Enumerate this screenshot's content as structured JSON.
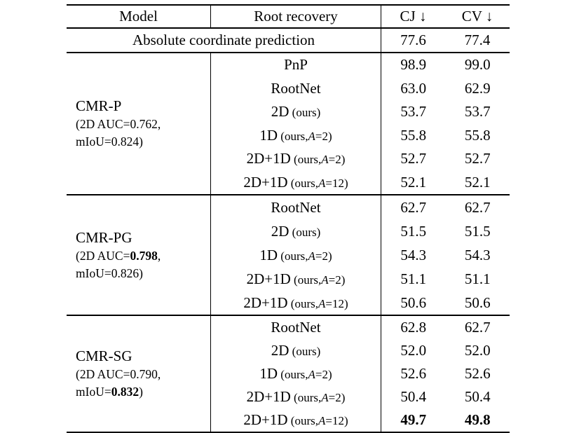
{
  "header": {
    "model": "Model",
    "recovery": "Root recovery",
    "cj": "CJ ↓",
    "cv": "CV ↓"
  },
  "absolute": {
    "label": "Absolute coordinate prediction",
    "cj": "77.6",
    "cv": "77.4"
  },
  "sections": [
    {
      "name": "CMR-P",
      "d1a": "(2D AUC=0.762,",
      "d1b": "",
      "d1c": "",
      "d2a": "mIoU=0.824)",
      "d2b": "",
      "d2c": "",
      "rows": [
        {
          "m": "PnP",
          "s1": "",
          "sA": "",
          "s2": "",
          "cj": "98.9",
          "cv": "99.0"
        },
        {
          "m": "RootNet",
          "s1": "",
          "sA": "",
          "s2": "",
          "cj": "63.0",
          "cv": "62.9"
        },
        {
          "m": "2D",
          "s1": " (ours)",
          "sA": "",
          "s2": "",
          "cj": "53.7",
          "cv": "53.7"
        },
        {
          "m": "1D",
          "s1": " (ours,",
          "sA": "A",
          "s2": "=2)",
          "cj": "55.8",
          "cv": "55.8"
        },
        {
          "m": "2D+1D",
          "s1": " (ours,",
          "sA": "A",
          "s2": "=2)",
          "cj": "52.7",
          "cv": "52.7"
        },
        {
          "m": "2D+1D",
          "s1": " (ours,",
          "sA": "A",
          "s2": "=12)",
          "cj": "52.1",
          "cv": "52.1"
        }
      ]
    },
    {
      "name": "CMR-PG",
      "d1a": "(2D AUC=",
      "d1b": "0.798",
      "d1c": ",",
      "d2a": "mIoU=0.826)",
      "d2b": "",
      "d2c": "",
      "rows": [
        {
          "m": "RootNet",
          "s1": "",
          "sA": "",
          "s2": "",
          "cj": "62.7",
          "cv": "62.7"
        },
        {
          "m": "2D",
          "s1": " (ours)",
          "sA": "",
          "s2": "",
          "cj": "51.5",
          "cv": "51.5"
        },
        {
          "m": "1D",
          "s1": " (ours,",
          "sA": "A",
          "s2": "=2)",
          "cj": "54.3",
          "cv": "54.3"
        },
        {
          "m": "2D+1D",
          "s1": " (ours,",
          "sA": "A",
          "s2": "=2)",
          "cj": "51.1",
          "cv": "51.1"
        },
        {
          "m": "2D+1D",
          "s1": " (ours,",
          "sA": "A",
          "s2": "=12)",
          "cj": "50.6",
          "cv": "50.6"
        }
      ]
    },
    {
      "name": "CMR-SG",
      "d1a": "(2D AUC=0.790,",
      "d1b": "",
      "d1c": "",
      "d2a": "mIoU=",
      "d2b": "0.832",
      "d2c": ")",
      "rows": [
        {
          "m": "RootNet",
          "s1": "",
          "sA": "",
          "s2": "",
          "cj": "62.8",
          "cv": "62.7"
        },
        {
          "m": "2D",
          "s1": " (ours)",
          "sA": "",
          "s2": "",
          "cj": "52.0",
          "cv": "52.0"
        },
        {
          "m": "1D",
          "s1": " (ours,",
          "sA": "A",
          "s2": "=2)",
          "cj": "52.6",
          "cv": "52.6"
        },
        {
          "m": "2D+1D",
          "s1": " (ours,",
          "sA": "A",
          "s2": "=2)",
          "cj": "50.4",
          "cv": "50.4"
        },
        {
          "m": "2D+1D",
          "s1": " (ours,",
          "sA": "A",
          "s2": "=12)",
          "cj": "49.7",
          "cv": "49.8"
        }
      ]
    }
  ]
}
